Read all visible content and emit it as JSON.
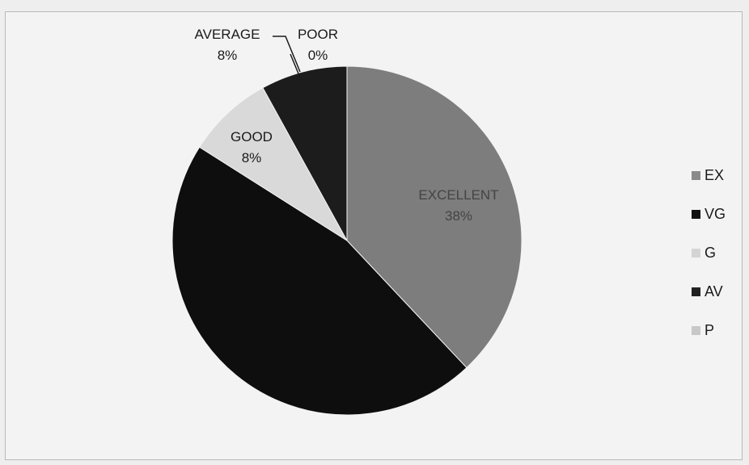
{
  "chart_data": {
    "type": "pie",
    "title": "",
    "slices": [
      {
        "category": "EXCELLENT",
        "value": 38,
        "label": "38%",
        "color": "#7d7d7d"
      },
      {
        "category": "VERY GOOD",
        "value": 46,
        "label": "",
        "color": "#0e0e0e"
      },
      {
        "category": "GOOD",
        "value": 8,
        "label": "8%",
        "color": "#d9d9d9"
      },
      {
        "category": "AVERAGE",
        "value": 8,
        "label": "8%",
        "color": "#1c1c1c"
      },
      {
        "category": "POOR",
        "value": 0,
        "label": "0%",
        "color": "#cfcfcf"
      }
    ],
    "legend": {
      "position": "right",
      "items": [
        {
          "label": "EX",
          "color": "#8a8a8a"
        },
        {
          "label": "VG",
          "color": "#111111"
        },
        {
          "label": "G",
          "color": "#d4d4d4"
        },
        {
          "label": "AV",
          "color": "#222222"
        },
        {
          "label": "P",
          "color": "#c8c8c8"
        }
      ]
    }
  }
}
